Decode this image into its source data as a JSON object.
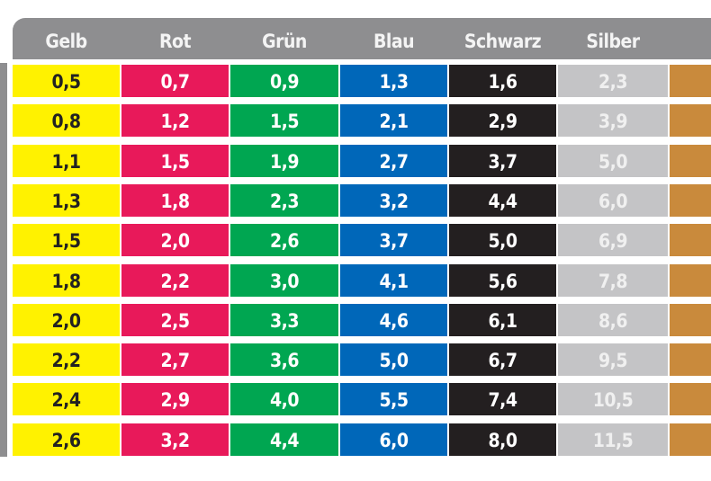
{
  "table": {
    "columns": [
      {
        "label": "Gelb",
        "bg": "#fff200",
        "fg": "#222222"
      },
      {
        "label": "Rot",
        "bg": "#e8195a",
        "fg": "#ffffff"
      },
      {
        "label": "Grün",
        "bg": "#00a651",
        "fg": "#ffffff"
      },
      {
        "label": "Blau",
        "bg": "#0067b9",
        "fg": "#ffffff"
      },
      {
        "label": "Schwarz",
        "bg": "#231f20",
        "fg": "#ffffff"
      },
      {
        "label": "Silber",
        "bg": "#c4c4c6",
        "fg": "#f0f0f0"
      },
      {
        "label": "",
        "bg": "#c98a3c",
        "fg": "#ffffff"
      }
    ],
    "rows": [
      [
        "0,5",
        "0,7",
        "0,9",
        "1,3",
        "1,6",
        "2,3",
        ""
      ],
      [
        "0,8",
        "1,2",
        "1,5",
        "2,1",
        "2,9",
        "3,9",
        ""
      ],
      [
        "1,1",
        "1,5",
        "1,9",
        "2,7",
        "3,7",
        "5,0",
        ""
      ],
      [
        "1,3",
        "1,8",
        "2,3",
        "3,2",
        "4,4",
        "6,0",
        ""
      ],
      [
        "1,5",
        "2,0",
        "2,6",
        "3,7",
        "5,0",
        "6,9",
        ""
      ],
      [
        "1,8",
        "2,2",
        "3,0",
        "4,1",
        "5,6",
        "7,8",
        ""
      ],
      [
        "2,0",
        "2,5",
        "3,3",
        "4,6",
        "6,1",
        "8,6",
        ""
      ],
      [
        "2,2",
        "2,7",
        "3,6",
        "5,0",
        "6,7",
        "9,5",
        ""
      ],
      [
        "2,4",
        "2,9",
        "4,0",
        "5,5",
        "7,4",
        "10,5",
        ""
      ],
      [
        "2,6",
        "3,2",
        "4,4",
        "6,0",
        "8,0",
        "11,5",
        ""
      ]
    ]
  }
}
